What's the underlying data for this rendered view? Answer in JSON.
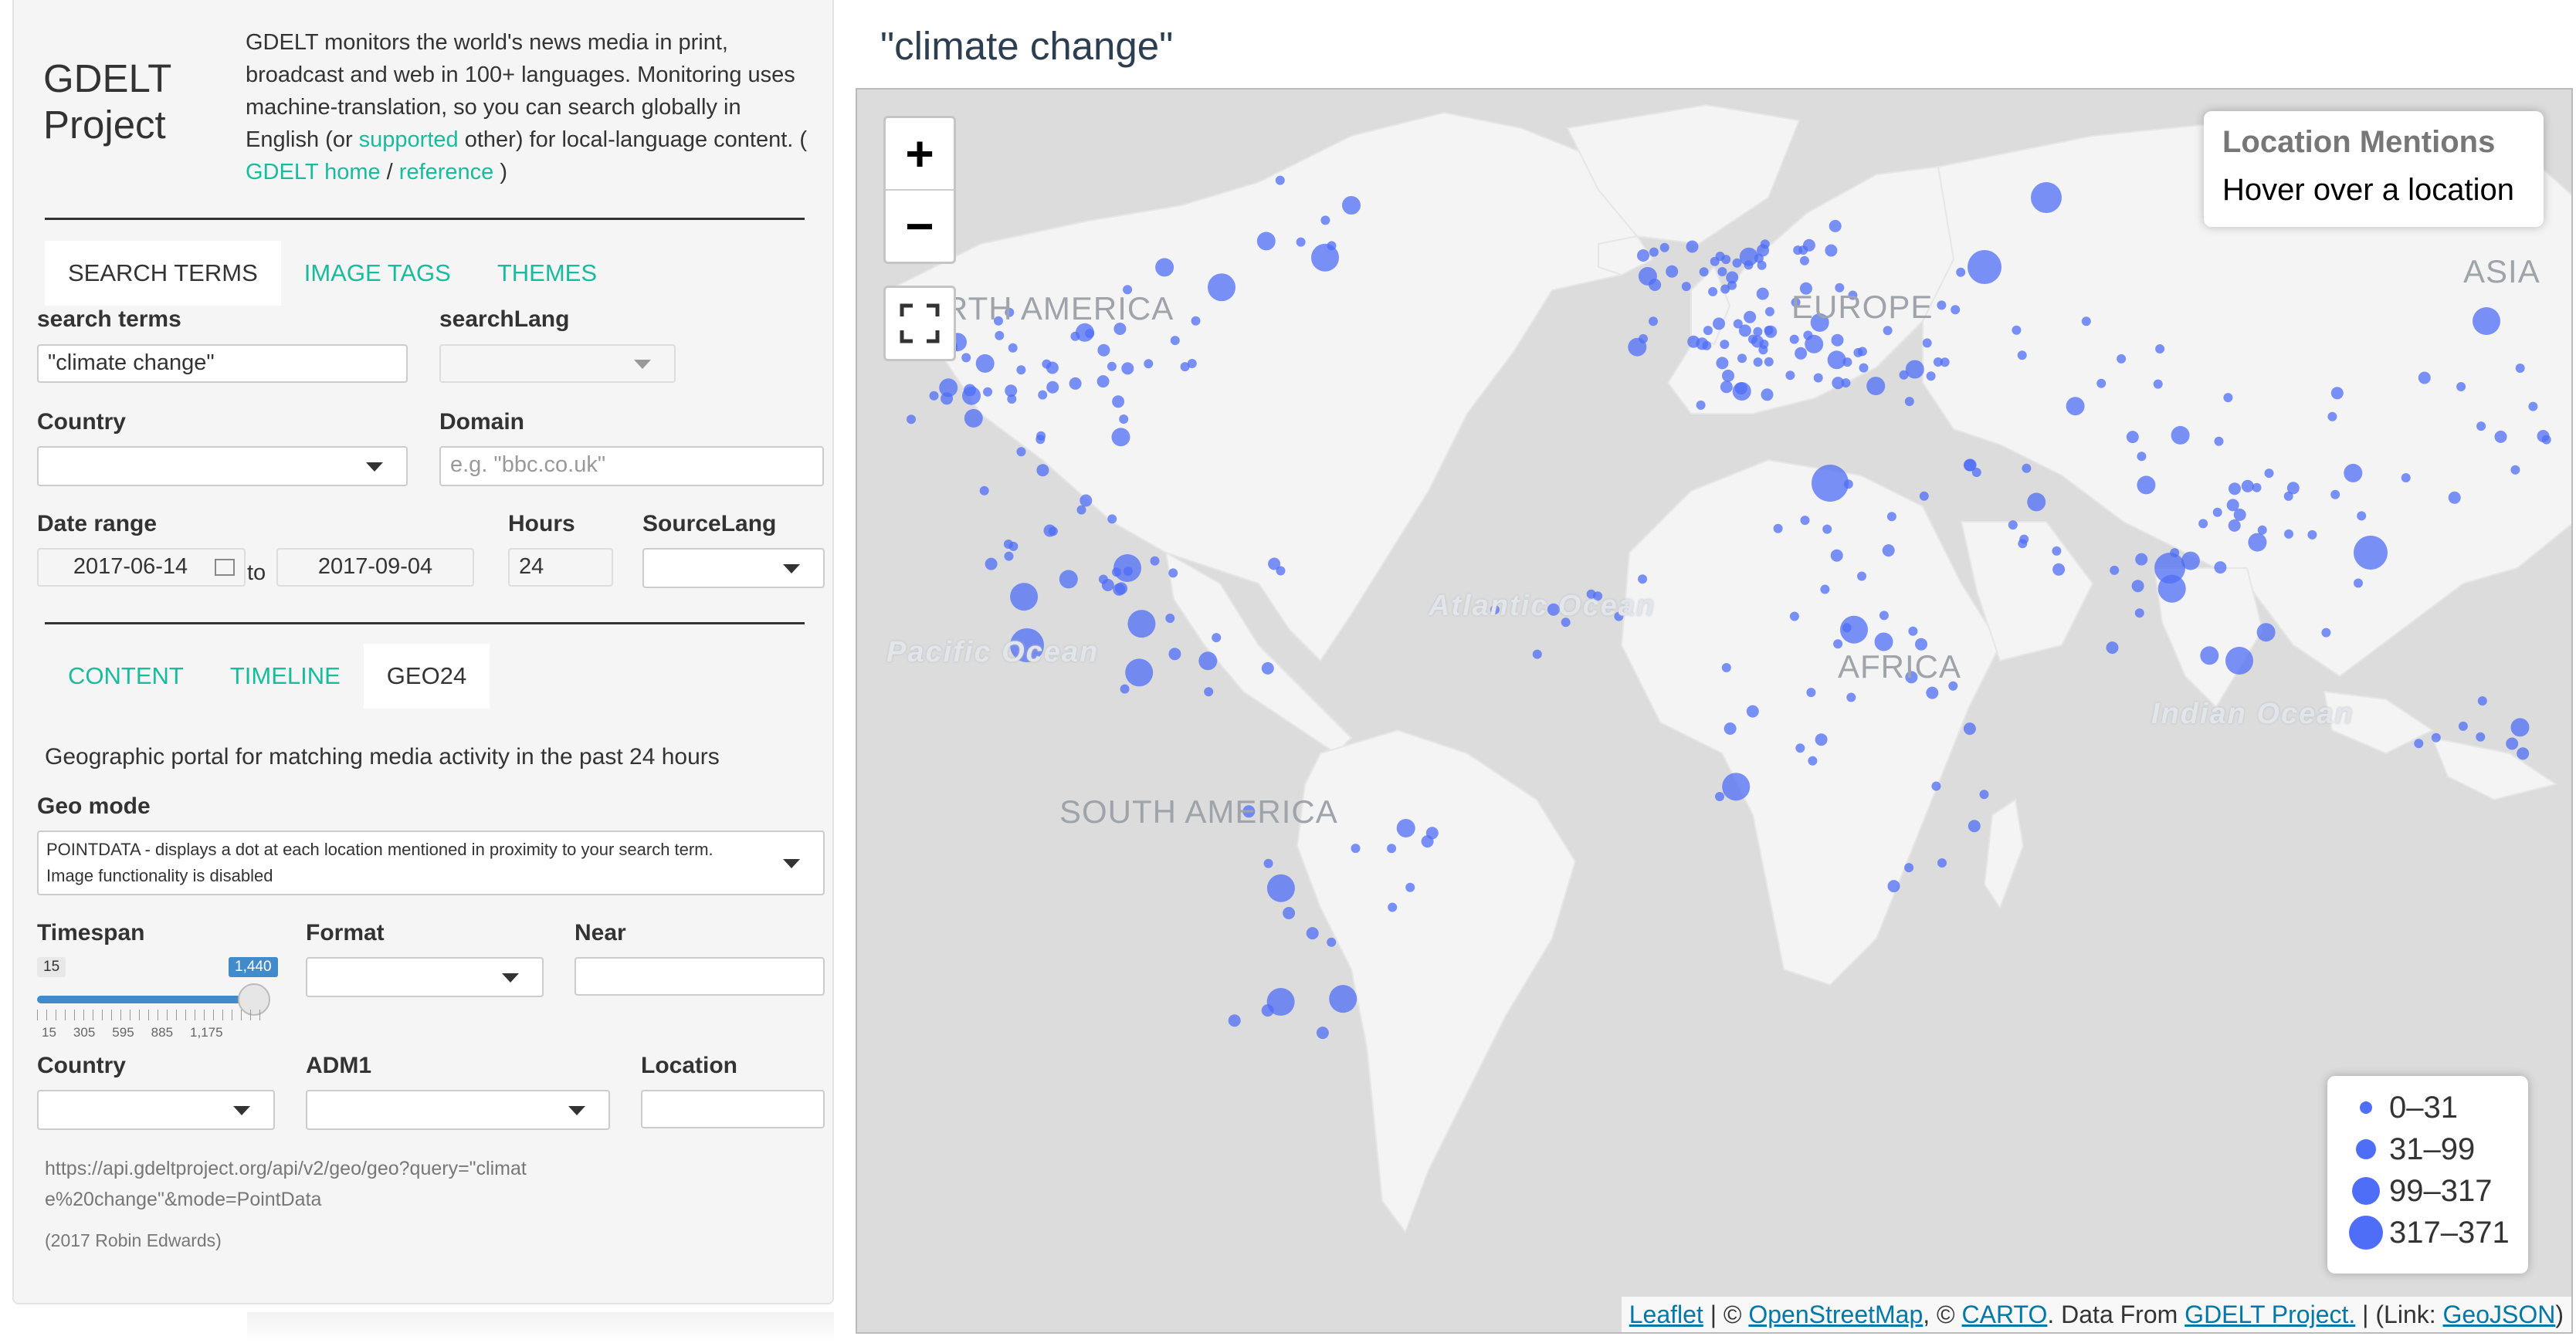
{
  "sidebar": {
    "title": "GDELT Project",
    "intro_1": "GDELT monitors the world's news media in print, broadcast and web in 100+ languages. Monitoring uses machine-translation, so you can search globally in English (or ",
    "intro_link_supported": "supported",
    "intro_2": " other) for local-language content. ( ",
    "intro_link_home": "GDELT home",
    "intro_sep": " / ",
    "intro_link_reference": "reference",
    "intro_3": " )",
    "search_tabs": [
      "SEARCH TERMS",
      "IMAGE TAGS",
      "THEMES"
    ],
    "search_terms_label": "search terms",
    "search_terms_value": "\"climate change\"",
    "search_lang_label": "searchLang",
    "country_label": "Country",
    "domain_label": "Domain",
    "domain_placeholder": "e.g. \"bbc.co.uk\"",
    "date_range_label": "Date range",
    "date_from": "2017-06-14",
    "date_to_word": "to",
    "date_to": "2017-09-04",
    "hours_label": "Hours",
    "hours_value": "24",
    "source_lang_label": "SourceLang",
    "view_tabs": [
      "CONTENT",
      "TIMELINE",
      "GEO24"
    ],
    "geo_description": "Geographic portal for matching media activity in the past 24 hours",
    "geo_mode_label": "Geo mode",
    "geo_mode_value": "POINTDATA - displays a dot at each location mentioned in proximity to your search term. Image functionality is disabled",
    "timespan_label": "Timespan",
    "timespan_min": "15",
    "timespan_value": "1,440",
    "timespan_ticks": [
      "15",
      "305",
      "595",
      "885",
      "1,175"
    ],
    "timespan_fraction": 1.0,
    "format_label": "Format",
    "near_label": "Near",
    "country2_label": "Country",
    "adm1_label": "ADM1",
    "location_label": "Location",
    "api_url": "https://api.gdeltproject.org/api/v2/geo/geo?query=\"climate%20change\"&mode=PointData",
    "credit": "(2017 Robin Edwards)"
  },
  "main": {
    "title": "\"climate change\"",
    "zoom_in": "+",
    "zoom_out": "−",
    "info_title": "Location Mentions",
    "info_text": "Hover over a location",
    "labels": {
      "north_america": "NORTH AMERICA",
      "europe": "EUROPE",
      "asia": "ASIA",
      "africa": "AFRICA",
      "south_america": "SOUTH AMERICA",
      "atlantic": "Atlantic Ocean",
      "pacific": "Pacific Ocean",
      "indian": "Indian Ocean"
    },
    "legend": [
      "0–31",
      "31–99",
      "99–317",
      "317–371"
    ],
    "attribution": {
      "leaflet": "Leaflet",
      "sep1": " | © ",
      "osm": "OpenStreetMap",
      "sep2": ", © ",
      "carto": "CARTO",
      "sep3": ". Data From ",
      "gdelt": "GDELT Project.",
      "sep4": " | (Link: ",
      "geojson": "GeoJSON",
      "sep5": ")"
    },
    "colors": {
      "point": "#4f6ef7",
      "land": "#f4f4f4",
      "water": "#dcdcdc",
      "accent": "#18bc9c"
    }
  }
}
